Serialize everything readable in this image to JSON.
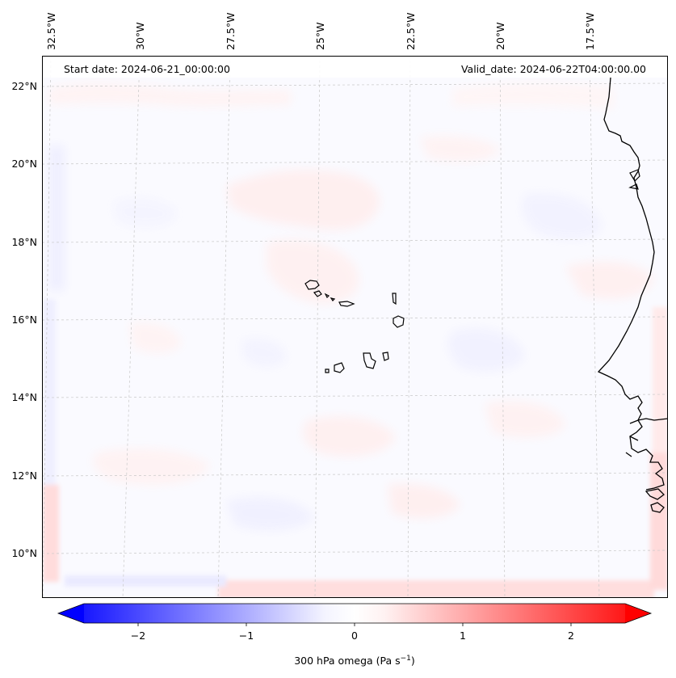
{
  "header": {
    "start_date": "Start date: 2024-06-21_00:00:00",
    "valid_date": "Valid_date: 2024-06-22T04:00:00.00"
  },
  "map": {
    "variable": "300 hPa omega",
    "lon_ticks": [
      "32.5°W",
      "30°W",
      "27.5°W",
      "25°W",
      "22.5°W",
      "20°W",
      "17.5°W"
    ],
    "lat_ticks": [
      "22°N",
      "20°N",
      "18°N",
      "16°N",
      "14°N",
      "12°N",
      "10°N"
    ],
    "gridlines": true,
    "colormap": "bwr",
    "colors": {
      "negative": "#0000ff",
      "zero": "#ffffff",
      "positive": "#ff0000",
      "coast": "#000000"
    }
  },
  "colorbar": {
    "ticks": [
      "−2",
      "−1",
      "0",
      "1",
      "2"
    ],
    "range": [
      -2.5,
      2.5
    ],
    "extend": "both",
    "label_main": "300 hPa omega (Pa s",
    "label_exp": "−1",
    "label_close": ")"
  }
}
